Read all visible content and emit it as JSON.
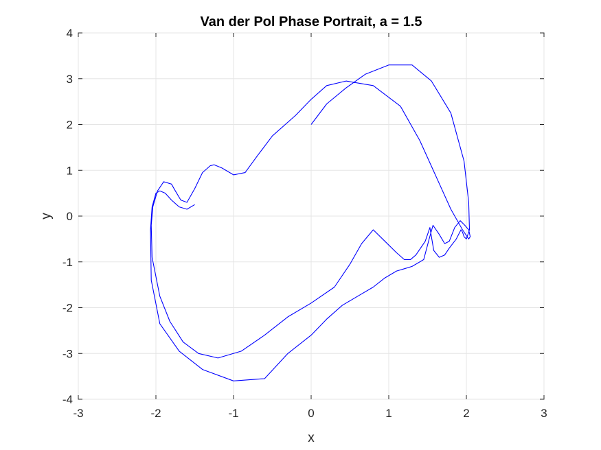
{
  "chart_data": {
    "type": "line",
    "title": "Van der Pol Phase Portrait, a = 1.5",
    "xlabel": "x",
    "ylabel": "y",
    "xlim": [
      -3,
      3
    ],
    "ylim": [
      -4,
      4
    ],
    "xticks": [
      -3,
      -2,
      -1,
      0,
      1,
      2,
      3
    ],
    "yticks": [
      -4,
      -3,
      -2,
      -1,
      0,
      1,
      2,
      3,
      4
    ],
    "grid": true,
    "series_color": "#0000ff",
    "series": [
      {
        "x": [
          0.0,
          0.2,
          0.45,
          0.7,
          1.0,
          1.3,
          1.55,
          1.8,
          1.97,
          2.03,
          2.04,
          2.0,
          1.97,
          1.95,
          1.93,
          1.87,
          1.78,
          1.72,
          1.65,
          1.58,
          1.53,
          1.47,
          1.35,
          1.28,
          1.2,
          1.1,
          0.95,
          0.8,
          0.65,
          0.5,
          0.3,
          0.0,
          -0.3,
          -0.6,
          -0.9,
          -1.2,
          -1.45,
          -1.65,
          -1.82,
          -1.95,
          -2.05,
          -2.06,
          -2.04,
          -1.98,
          -1.9,
          -1.8,
          -1.75,
          -1.68,
          -1.6,
          -1.5,
          -1.4,
          -1.3,
          -1.25,
          -1.15,
          -1.0,
          -0.85,
          -0.7,
          -0.5,
          -0.2,
          0.0,
          0.2,
          0.45,
          0.8,
          1.15,
          1.4,
          1.6,
          1.8,
          1.95,
          2.03,
          2.05,
          2.03,
          1.98,
          1.92,
          1.85,
          1.78,
          1.72,
          1.65,
          1.57,
          1.52,
          1.45,
          1.3,
          1.2,
          1.1,
          0.95,
          0.8,
          0.6,
          0.4,
          0.2,
          0.0,
          -0.3,
          -0.6,
          -1.0,
          -1.4,
          -1.7,
          -1.95,
          -2.06,
          -2.07,
          -2.05,
          -2.0,
          -1.95,
          -1.88,
          -1.8,
          -1.7,
          -1.6,
          -1.5
        ],
        "y": [
          2.0,
          2.45,
          2.8,
          3.1,
          3.3,
          3.3,
          2.95,
          2.25,
          1.2,
          0.3,
          -0.3,
          -0.5,
          -0.45,
          -0.35,
          -0.3,
          -0.5,
          -0.7,
          -0.85,
          -0.9,
          -0.75,
          -0.25,
          -0.55,
          -0.85,
          -0.95,
          -0.95,
          -0.8,
          -0.55,
          -0.3,
          -0.6,
          -1.05,
          -1.55,
          -1.9,
          -2.2,
          -2.6,
          -2.95,
          -3.1,
          -3.0,
          -2.75,
          -2.3,
          -1.75,
          -0.9,
          -0.2,
          0.2,
          0.55,
          0.75,
          0.7,
          0.55,
          0.35,
          0.3,
          0.6,
          0.95,
          1.1,
          1.12,
          1.05,
          0.9,
          0.95,
          1.3,
          1.75,
          2.2,
          2.55,
          2.85,
          2.95,
          2.85,
          2.4,
          1.65,
          0.9,
          0.15,
          -0.3,
          -0.5,
          -0.45,
          -0.3,
          -0.2,
          -0.1,
          -0.25,
          -0.55,
          -0.6,
          -0.4,
          -0.2,
          -0.5,
          -0.95,
          -1.1,
          -1.15,
          -1.2,
          -1.35,
          -1.55,
          -1.75,
          -1.95,
          -2.25,
          -2.6,
          -3.0,
          -3.55,
          -3.6,
          -3.35,
          -2.95,
          -2.35,
          -1.4,
          -0.3,
          0.2,
          0.5,
          0.55,
          0.5,
          0.35,
          0.2,
          0.15,
          0.25
        ]
      }
    ]
  }
}
